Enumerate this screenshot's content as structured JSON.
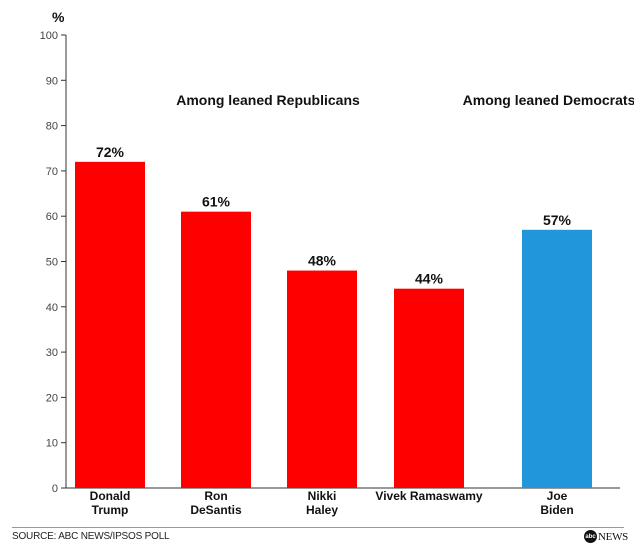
{
  "chart_data": {
    "type": "bar",
    "unit_label": "%",
    "categories": [
      [
        "Donald",
        "Trump"
      ],
      [
        "Ron",
        "DeSantis"
      ],
      [
        "Nikki",
        "Haley"
      ],
      [
        "Vivek Ramaswamy"
      ],
      [
        "Joe",
        "Biden"
      ]
    ],
    "values": [
      72,
      61,
      48,
      44,
      57
    ],
    "value_labels": [
      "72%",
      "61%",
      "48%",
      "44%",
      "57%"
    ],
    "colors": [
      "#ff0000",
      "#ff0000",
      "#ff0000",
      "#ff0000",
      "#2196db"
    ],
    "group_labels": [
      "Among leaned Republicans",
      "Among leaned Democrats"
    ],
    "ylim": [
      0,
      100
    ],
    "yticks": [
      0,
      10,
      20,
      30,
      40,
      50,
      60,
      70,
      80,
      90,
      100
    ],
    "grid": false,
    "legend": "none"
  },
  "footer": {
    "source": "SOURCE: ABC NEWS/IPSOS POLL",
    "logo_mark": "abc",
    "logo_text": "NEWS"
  }
}
